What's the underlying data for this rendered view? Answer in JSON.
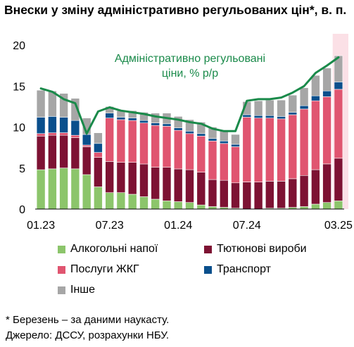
{
  "title": "Внески у зміну адміністративно регульованих цін*, в. п.",
  "footnote": {
    "line1": "* Березень – за даними наукасту.",
    "line2": "Джерело: ДССУ, розрахунки НБУ."
  },
  "chart_data": {
    "type": "bar",
    "stacked": true,
    "ylim": [
      0,
      20
    ],
    "yticks": [
      "0",
      "5",
      "10",
      "15",
      "20"
    ],
    "xtick_labels": [
      {
        "index": 0,
        "label": "01.23"
      },
      {
        "index": 6,
        "label": "07.23"
      },
      {
        "index": 12,
        "label": "01.24"
      },
      {
        "index": 18,
        "label": "07.24"
      },
      {
        "index": 26,
        "label": "03.25"
      }
    ],
    "categories": [
      "01.23",
      "02.23",
      "03.23",
      "04.23",
      "05.23",
      "06.23",
      "07.23",
      "08.23",
      "09.23",
      "10.23",
      "11.23",
      "12.23",
      "01.24",
      "02.24",
      "03.24",
      "04.24",
      "05.24",
      "06.24",
      "07.24",
      "08.24",
      "09.24",
      "10.24",
      "11.24",
      "12.24",
      "01.25",
      "02.25",
      "03.25"
    ],
    "nowcast_index": 26,
    "series": [
      {
        "name": "Алкогольні напої",
        "color": "#8cc56b",
        "values": [
          4.8,
          4.9,
          5.0,
          4.9,
          4.2,
          2.7,
          2.0,
          2.0,
          1.8,
          1.5,
          1.2,
          1.0,
          0.9,
          0.8,
          0.5,
          0.3,
          0.2,
          0.1,
          0.0,
          0.0,
          0.1,
          0.1,
          0.2,
          0.3,
          0.6,
          0.8,
          1.0
        ]
      },
      {
        "name": "Тютюнові вироби",
        "color": "#7d1233",
        "values": [
          4.1,
          4.1,
          4.0,
          3.8,
          3.4,
          3.6,
          3.8,
          3.7,
          3.9,
          4.0,
          3.9,
          4.1,
          4.0,
          4.0,
          4.0,
          3.3,
          3.3,
          3.1,
          3.3,
          3.3,
          3.3,
          3.3,
          3.5,
          3.8,
          4.2,
          4.7,
          5.2
        ]
      },
      {
        "name": "Послуги ЖКГ",
        "color": "#e05570",
        "values": [
          0.3,
          0.3,
          0.3,
          0.3,
          0.2,
          0.6,
          5.3,
          5.2,
          5.1,
          5.0,
          5.1,
          5.0,
          4.7,
          4.4,
          4.4,
          4.7,
          4.5,
          4.4,
          7.9,
          7.8,
          7.7,
          7.6,
          7.8,
          8.1,
          8.4,
          8.2,
          8.4
        ]
      },
      {
        "name": "Транспорт",
        "color": "#0a4f8c",
        "values": [
          2.0,
          2.0,
          1.9,
          1.8,
          1.3,
          1.1,
          0.6,
          0.3,
          0.3,
          0.3,
          0.3,
          0.3,
          0.3,
          0.3,
          0.3,
          0.3,
          0.3,
          0.3,
          0.3,
          0.3,
          0.3,
          0.3,
          0.3,
          0.4,
          0.6,
          0.7,
          0.9
        ]
      },
      {
        "name": "Інше",
        "color": "#a6a6a6",
        "values": [
          3.3,
          3.1,
          2.9,
          2.7,
          2.0,
          1.3,
          0.8,
          0.8,
          0.9,
          1.0,
          1.2,
          1.3,
          1.4,
          1.4,
          1.4,
          1.4,
          1.3,
          1.2,
          1.6,
          1.8,
          1.9,
          2.0,
          2.1,
          2.2,
          2.5,
          2.8,
          3.2
        ]
      }
    ],
    "line": {
      "name": "Адміністративно регульовані ціни, % р/р",
      "label_line1": "Адміністративно регульовані",
      "label_line2": "ціни, % р/р",
      "color": "#1a8a4a",
      "values": [
        14.7,
        14.3,
        13.4,
        12.9,
        9.2,
        11.9,
        12.4,
        12.0,
        11.8,
        11.6,
        11.3,
        11.1,
        10.9,
        10.6,
        10.4,
        9.8,
        9.5,
        9.5,
        13.2,
        13.4,
        13.4,
        13.6,
        14.2,
        15.0,
        16.6,
        17.5,
        18.5
      ]
    }
  }
}
